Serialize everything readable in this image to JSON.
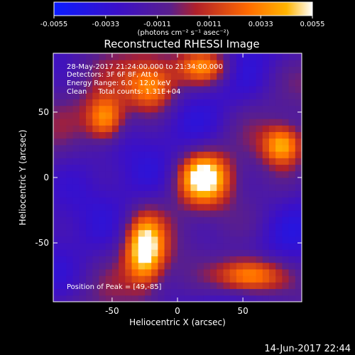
{
  "chart_data": {
    "type": "heatmap",
    "title": "Reconstructed RHESSI Image",
    "xlabel": "Heliocentric X (arcsec)",
    "ylabel": "Heliocentric Y (arcsec)",
    "xlim": [
      -95,
      95
    ],
    "ylim": [
      -95,
      95
    ],
    "x_ticks": [
      -50,
      0,
      50
    ],
    "y_ticks": [
      50,
      0,
      -50
    ],
    "colorbar": {
      "min": -0.0055,
      "max": 0.0055,
      "tick_values": [
        -0.0055,
        -0.0033,
        -0.0011,
        0.0011,
        0.0033,
        0.0055
      ],
      "tick_labels": [
        "-0.0055",
        "-0.0033",
        "-0.0011",
        "0.0011",
        "0.0033",
        "0.0055"
      ],
      "units": "(photons cm⁻² s⁻¹ asec⁻²)"
    },
    "annotations": [
      "28-May-2017 21:24:00.000 to 21:34:00.000",
      "Detectors: 3F 6F 8F, Att 0",
      "Energy Range: 6.0 - 12.0 keV",
      "Clean     Total counts: 1.31E+04"
    ],
    "peak_label": "Position of Peak = [49,-85]",
    "sources": [
      {
        "x": 20,
        "y": 0,
        "peak": 0.0055,
        "sx": 13,
        "sy": 13
      },
      {
        "x": -25,
        "y": -55,
        "peak": 0.0055,
        "sx": 10,
        "sy": 18
      },
      {
        "x": 55,
        "y": -75,
        "peak": 0.0052,
        "sx": 18,
        "sy": 10
      },
      {
        "x": -55,
        "y": 45,
        "peak": 0.0038,
        "sx": 10,
        "sy": 12
      },
      {
        "x": -20,
        "y": 70,
        "peak": 0.004,
        "sx": 14,
        "sy": 14
      },
      {
        "x": 20,
        "y": 85,
        "peak": 0.0035,
        "sx": 14,
        "sy": 10
      },
      {
        "x": 80,
        "y": 25,
        "peak": 0.0035,
        "sx": 10,
        "sy": 10
      }
    ],
    "grid": false
  },
  "footer": {
    "timestamp": "14-Jun-2017 22:44"
  }
}
